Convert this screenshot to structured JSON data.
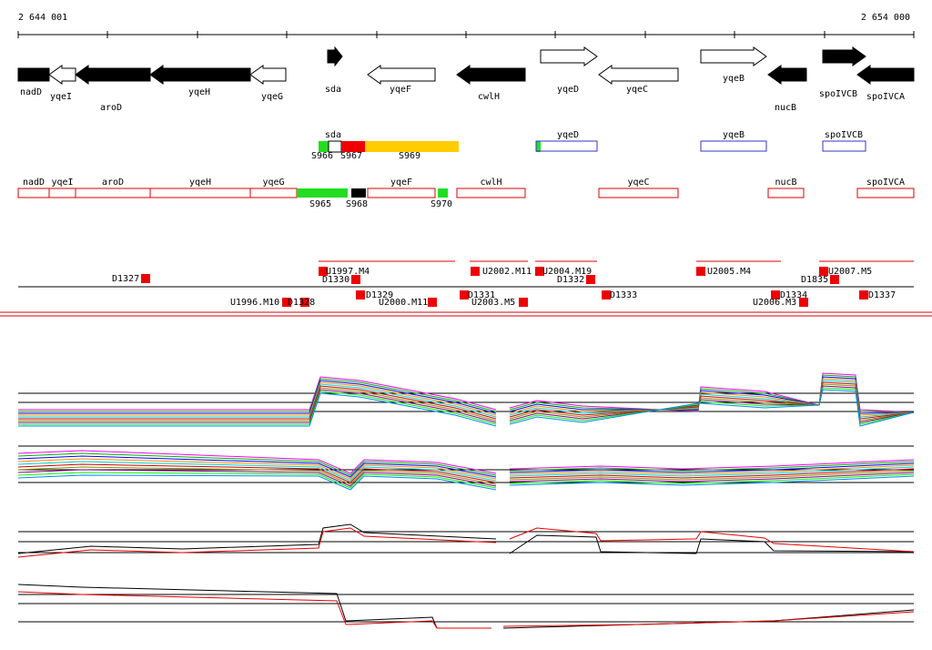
{
  "scale": {
    "start": "2 644 001",
    "end": "2 654 000"
  },
  "genes": [
    "nadD",
    "yqeI",
    "aroD",
    "yqeH",
    "yqeG",
    "sda",
    "yqeF",
    "cwlH",
    "yqeD",
    "yqeC",
    "yqeB",
    "nucB",
    "spoIVCB",
    "spoIVCA"
  ],
  "features": {
    "labels": [
      "sda",
      "yqeD",
      "yqeB",
      "spoIVCB"
    ],
    "segments": [
      "S966",
      "S967",
      "S969"
    ]
  },
  "annotations": {
    "labels": [
      "nadD",
      "yqeI",
      "aroD",
      "yqeH",
      "yqeG",
      "yqeF",
      "cwlH",
      "yqeC",
      "nucB",
      "spoIVCA"
    ],
    "segments": [
      "S965",
      "S968",
      "S970"
    ]
  },
  "probes": [
    "D1327",
    "U1997.M4",
    "D1330",
    "U2002.M11",
    "U2004.M19",
    "D1332",
    "U2005.M4",
    "D1835",
    "U2007.M5",
    "U1996.M10",
    "D1328",
    "D1329",
    "U2000.M11",
    "D1331",
    "U2003.M5",
    "D1333",
    "D1334",
    "U2006.M3",
    "D1337"
  ]
}
